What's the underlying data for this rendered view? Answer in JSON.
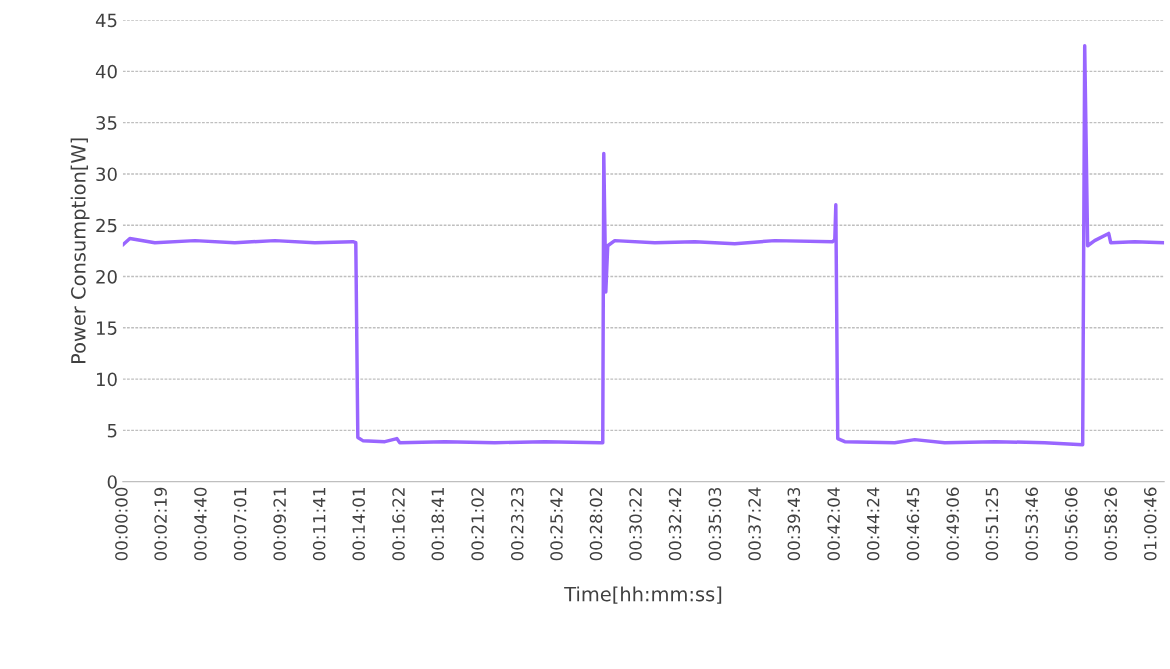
{
  "chart_data": {
    "type": "line",
    "xlabel": "Time[hh:mm:ss]",
    "ylabel": "Power Consumption[W]",
    "x": [
      0,
      0.0069,
      0.0315,
      0.0709,
      0.1102,
      0.1496,
      0.189,
      0.2264,
      0.2293,
      0.2313,
      0.2362,
      0.2579,
      0.2697,
      0.2726,
      0.3169,
      0.3661,
      0.4153,
      0.4704,
      0.4724,
      0.4734,
      0.4754,
      0.4773,
      0.4842,
      0.5236,
      0.563,
      0.6023,
      0.6417,
      0.6988,
      0.7008,
      0.7018,
      0.7037,
      0.7106,
      0.7598,
      0.7795,
      0.809,
      0.8582,
      0.9074,
      0.9448,
      0.9468,
      0.9497,
      0.9566,
      0.9704,
      0.9724,
      0.996,
      1.0236
    ],
    "series": [
      {
        "color": "#9966ff",
        "values": [
          23.1,
          23.7,
          23.3,
          23.5,
          23.3,
          23.5,
          23.3,
          23.4,
          23.3,
          4.3,
          4.0,
          3.9,
          4.2,
          3.8,
          3.9,
          3.8,
          3.9,
          3.8,
          3.8,
          32.0,
          18.5,
          23.0,
          23.5,
          23.3,
          23.4,
          23.2,
          23.5,
          23.4,
          23.6,
          27.0,
          4.2,
          3.9,
          3.8,
          4.1,
          3.8,
          3.9,
          3.8,
          3.6,
          42.5,
          23.0,
          23.5,
          24.2,
          23.3,
          23.4,
          23.3
        ]
      }
    ],
    "xlim": [
      0,
      1.025
    ],
    "ylim": [
      0,
      45
    ],
    "yticks": [
      0,
      5,
      10,
      15,
      20,
      25,
      30,
      35,
      40,
      45
    ],
    "xticks": [
      {
        "value": 0,
        "label": "00:00:00"
      },
      {
        "value": 0.0386,
        "label": "00:02:19"
      },
      {
        "value": 0.0778,
        "label": "00:04:40"
      },
      {
        "value": 0.1169,
        "label": "00:07:01"
      },
      {
        "value": 0.1558,
        "label": "00:09:21"
      },
      {
        "value": 0.1947,
        "label": "00:11:41"
      },
      {
        "value": 0.2336,
        "label": "00:14:01"
      },
      {
        "value": 0.2728,
        "label": "00:16:22"
      },
      {
        "value": 0.3114,
        "label": "00:18:41"
      },
      {
        "value": 0.3506,
        "label": "00:21:02"
      },
      {
        "value": 0.3897,
        "label": "00:23:23"
      },
      {
        "value": 0.4283,
        "label": "00:25:42"
      },
      {
        "value": 0.4672,
        "label": "00:28:02"
      },
      {
        "value": 0.5061,
        "label": "00:30:22"
      },
      {
        "value": 0.545,
        "label": "00:32:42"
      },
      {
        "value": 0.5842,
        "label": "00:35:03"
      },
      {
        "value": 0.6233,
        "label": "00:37:24"
      },
      {
        "value": 0.6619,
        "label": "00:39:43"
      },
      {
        "value": 0.7011,
        "label": "00:42:04"
      },
      {
        "value": 0.74,
        "label": "00:44:24"
      },
      {
        "value": 0.7792,
        "label": "00:46:45"
      },
      {
        "value": 0.8183,
        "label": "00:49:06"
      },
      {
        "value": 0.8569,
        "label": "00:51:25"
      },
      {
        "value": 0.8961,
        "label": "00:53:46"
      },
      {
        "value": 0.935,
        "label": "00:56:06"
      },
      {
        "value": 0.9739,
        "label": "00:58:26"
      },
      {
        "value": 1.0128,
        "label": "01:00:46"
      }
    ],
    "grid": "y",
    "legend": false,
    "marker": "none",
    "line_style": "solid"
  }
}
